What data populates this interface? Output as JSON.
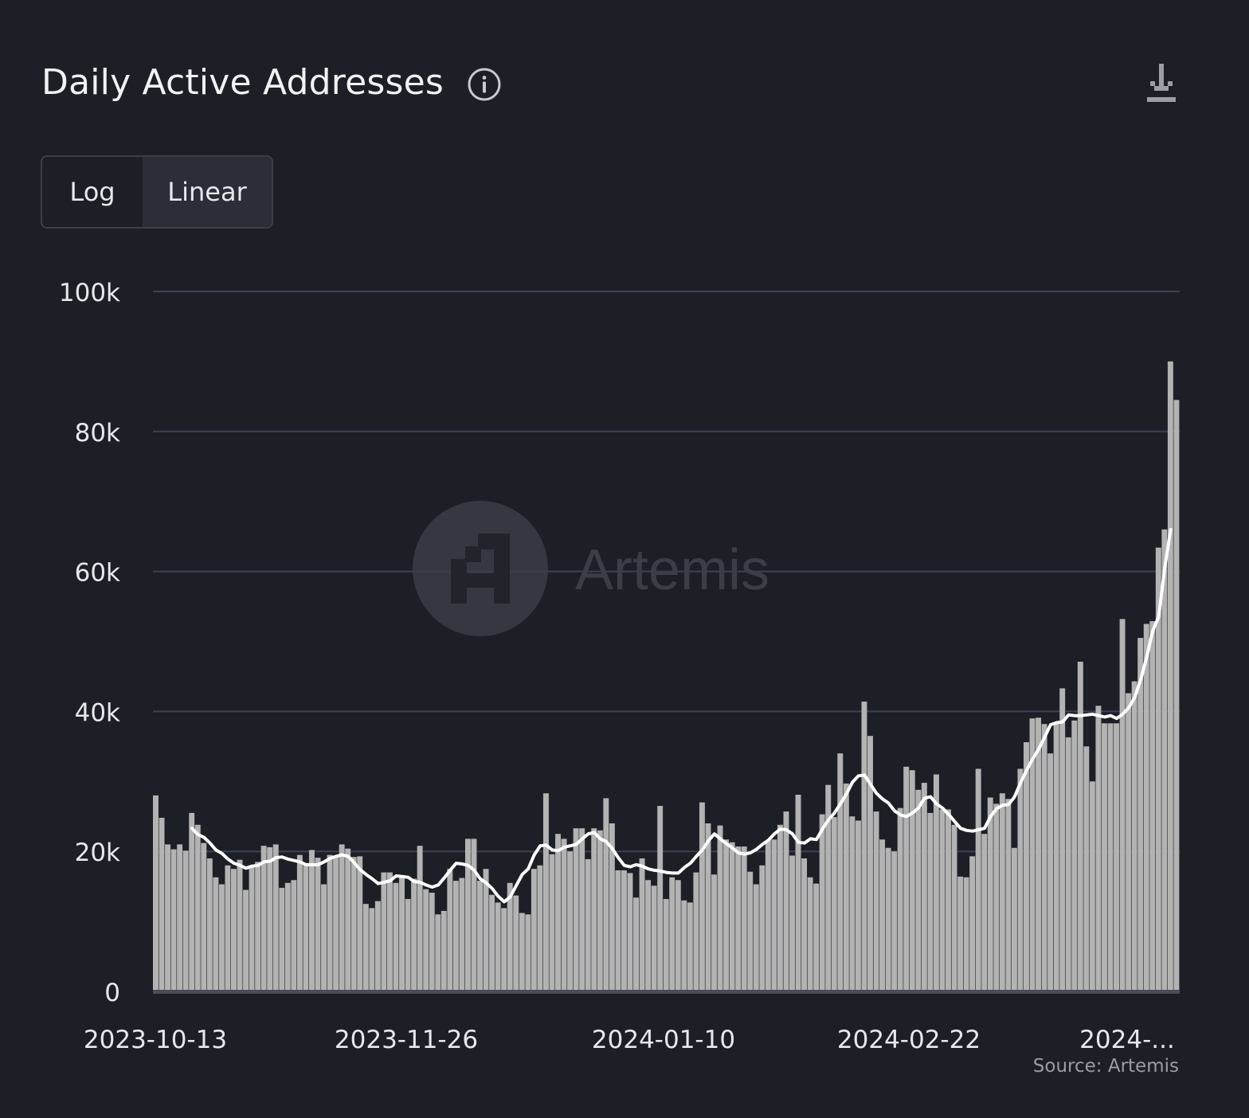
{
  "header": {
    "title": "Daily Active Addresses",
    "info_icon": "info-circle-icon",
    "download_icon": "download-icon"
  },
  "scale_toggle": {
    "options": [
      "Log",
      "Linear"
    ],
    "selected": "Linear"
  },
  "watermark": {
    "text": "Artemis"
  },
  "source": "Source: Artemis",
  "colors": {
    "background": "#1d1f27",
    "bars": "#b3b3b3",
    "line": "#ffffff",
    "grid": "#3e4150"
  },
  "chart_data": {
    "type": "bar",
    "title": "Daily Active Addresses",
    "xlabel": "",
    "ylabel": "",
    "ylim": [
      0,
      100000
    ],
    "yticks": [
      "0",
      "20k",
      "40k",
      "60k",
      "80k",
      "100k"
    ],
    "xticks": [
      "2023-10-13",
      "2023-11-26",
      "2024-01-10",
      "2024-02-22",
      "2024-..."
    ],
    "start_date": "2023-10-13",
    "grid": true,
    "legend": "none",
    "series": [
      {
        "type": "bar",
        "values": [
          28000,
          24800,
          21000,
          20300,
          21000,
          20100,
          25500,
          23800,
          21200,
          19000,
          16300,
          15300,
          18000,
          17500,
          18800,
          14500,
          18000,
          18500,
          20800,
          20600,
          21000,
          14800,
          15500,
          15900,
          19500,
          18000,
          20200,
          19100,
          15300,
          19500,
          19400,
          21000,
          20400,
          19200,
          19300,
          12500,
          11900,
          12900,
          17000,
          17000,
          15500,
          16500,
          13200,
          16100,
          20800,
          14600,
          14100,
          11000,
          11500,
          17500,
          15800,
          16200,
          21800,
          21800,
          15800,
          17500,
          13800,
          12700,
          11900,
          15500,
          13700,
          11200,
          11000,
          17500,
          18000,
          28300,
          19600,
          22500,
          21800,
          20000,
          23300,
          23300,
          18900,
          23300,
          23000,
          27600,
          24000,
          17300,
          17300,
          16900,
          13400,
          19000,
          15900,
          15100,
          26500,
          13200,
          16300,
          15900,
          13000,
          12700,
          17000,
          27000,
          24000,
          16700,
          23700,
          21700,
          21300,
          20700,
          20700,
          17100,
          15300,
          18000,
          21600,
          21700,
          23800,
          25700,
          19400,
          28100,
          19000,
          16300,
          15400,
          25300,
          29500,
          24900,
          34000,
          29700,
          25000,
          24400,
          41400,
          36500,
          25700,
          21700,
          20500,
          20000,
          26200,
          32100,
          31600,
          28800,
          29800,
          25500,
          31000,
          26000,
          26000,
          23800,
          16400,
          16300,
          19300,
          31800,
          22500,
          27700,
          26800,
          28300,
          27500,
          20500,
          31800,
          35600,
          39000,
          39100,
          38200,
          34000,
          38300,
          43300,
          36300,
          38700,
          47100,
          35000,
          30000,
          40800,
          38300,
          38300,
          38300,
          53200,
          42600,
          44300,
          50500,
          52500,
          52900,
          63400,
          66000,
          90000,
          84500
        ]
      },
      {
        "type": "line",
        "values": [
          null,
          null,
          null,
          null,
          null,
          null,
          23300,
          22400,
          22000,
          21200,
          20200,
          19700,
          18900,
          18300,
          18000,
          17600,
          17900,
          18000,
          18500,
          18600,
          19100,
          19200,
          18900,
          18700,
          18500,
          18100,
          18100,
          18100,
          18500,
          19000,
          19300,
          19500,
          19300,
          18400,
          17400,
          16700,
          16100,
          15400,
          15600,
          15800,
          16500,
          16400,
          16300,
          15700,
          15600,
          15200,
          14900,
          15200,
          16200,
          17300,
          18300,
          18200,
          18000,
          17300,
          16100,
          15500,
          14700,
          13600,
          12800,
          13500,
          15100,
          16700,
          17500,
          19500,
          20800,
          20900,
          20200,
          20100,
          20600,
          20800,
          21000,
          21800,
          22500,
          22700,
          21800,
          21400,
          20400,
          19100,
          18000,
          17800,
          18100,
          17900,
          17500,
          17300,
          17200,
          17000,
          16900,
          16900,
          17700,
          18300,
          19300,
          20200,
          21500,
          22500,
          21800,
          21100,
          20500,
          19800,
          19600,
          19800,
          20300,
          21000,
          21600,
          22500,
          23200,
          23100,
          22500,
          21300,
          21200,
          21800,
          21700,
          23200,
          24500,
          25500,
          26800,
          28200,
          29900,
          30800,
          30900,
          29600,
          28300,
          27500,
          26900,
          25800,
          25200,
          25000,
          25500,
          26200,
          27600,
          27800,
          26800,
          26200,
          25300,
          24300,
          23300,
          23000,
          22900,
          23100,
          23300,
          25000,
          26100,
          26600,
          26700,
          27800,
          29800,
          31600,
          33200,
          34600,
          36300,
          38100,
          38400,
          38500,
          39500,
          39400,
          39400,
          39500,
          39600,
          39400,
          39200,
          39400,
          39000,
          39600,
          40500,
          42000,
          44500,
          47700,
          51500,
          53500,
          60500,
          66000
        ]
      }
    ]
  }
}
